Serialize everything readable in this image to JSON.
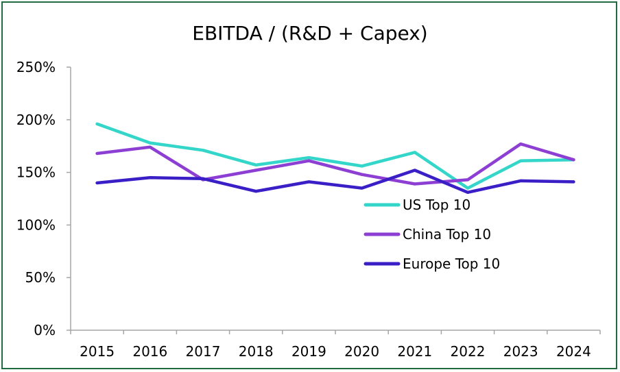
{
  "chart_data": {
    "type": "line",
    "title": "EBITDA / (R&D + Capex)",
    "xlabel": "",
    "ylabel": "",
    "categories": [
      "2015",
      "2016",
      "2017",
      "2018",
      "2019",
      "2020",
      "2021",
      "2022",
      "2023",
      "2024"
    ],
    "ylim": [
      0,
      2.5
    ],
    "yticks": [
      0,
      0.5,
      1.0,
      1.5,
      2.0,
      2.5
    ],
    "ytick_labels": [
      "0%",
      "50%",
      "100%",
      "150%",
      "200%",
      "250%"
    ],
    "grid": false,
    "legend_position": "center-right",
    "series": [
      {
        "name": "US Top 10",
        "color": "#33d6c9",
        "values": [
          1.96,
          1.78,
          1.71,
          1.57,
          1.64,
          1.56,
          1.69,
          1.35,
          1.61,
          1.62
        ]
      },
      {
        "name": "China Top 10",
        "color": "#8e3fd3",
        "values": [
          1.68,
          1.74,
          1.43,
          1.52,
          1.61,
          1.48,
          1.39,
          1.43,
          1.77,
          1.62
        ]
      },
      {
        "name": "Europe Top 10",
        "color": "#3a1fc7",
        "values": [
          1.4,
          1.45,
          1.44,
          1.32,
          1.41,
          1.35,
          1.52,
          1.31,
          1.42,
          1.41
        ]
      }
    ]
  }
}
